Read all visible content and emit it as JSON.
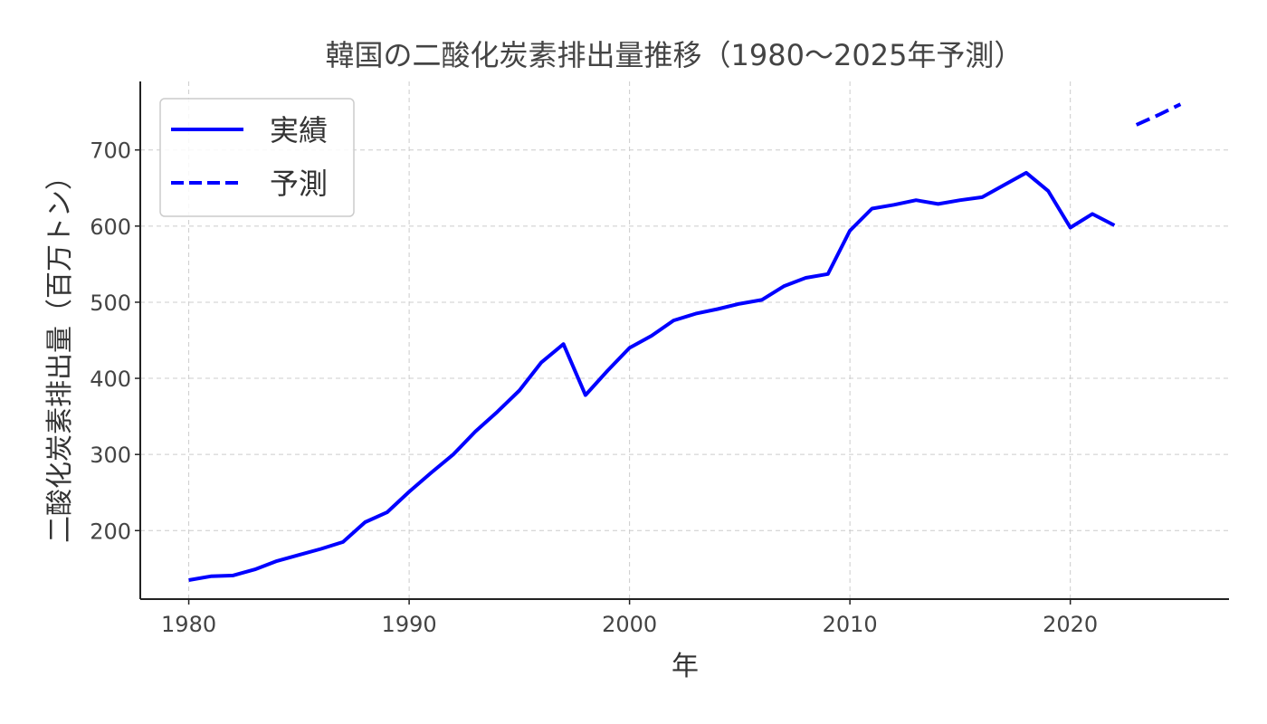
{
  "chart_data": {
    "type": "line",
    "title": "韓国の二酸化炭素排出量推移（1980〜2025年予測）",
    "xlabel": "年",
    "ylabel": "二酸化炭素排出量（百万トン）",
    "xlim": [
      1977.8,
      2027.2
    ],
    "ylim": [
      110,
      790
    ],
    "x_ticks": [
      1980,
      1990,
      2000,
      2010,
      2020
    ],
    "y_ticks": [
      200,
      300,
      400,
      500,
      600,
      700
    ],
    "grid": true,
    "legend_position": "top-left",
    "series": [
      {
        "name": "実績",
        "style": "solid",
        "color": "#0000ff",
        "x": [
          1980,
          1981,
          1982,
          1983,
          1984,
          1985,
          1986,
          1987,
          1988,
          1989,
          1990,
          1991,
          1992,
          1993,
          1994,
          1995,
          1996,
          1997,
          1998,
          1999,
          2000,
          2001,
          2002,
          2003,
          2004,
          2005,
          2006,
          2007,
          2008,
          2009,
          2010,
          2011,
          2012,
          2013,
          2014,
          2015,
          2016,
          2017,
          2018,
          2019,
          2020,
          2021,
          2022
        ],
        "values": [
          135,
          140,
          141,
          149,
          160,
          168,
          176,
          185,
          211,
          224,
          251,
          276,
          300,
          330,
          356,
          384,
          421,
          445,
          378,
          410,
          440,
          456,
          476,
          485,
          491,
          498,
          503,
          521,
          532,
          537,
          594,
          623,
          628,
          634,
          629,
          634,
          638,
          654,
          670,
          646,
          598,
          616,
          601
        ]
      },
      {
        "name": "予測",
        "style": "dashed",
        "color": "#0000ff",
        "x": [
          2023,
          2024,
          2025
        ],
        "values": [
          733,
          746,
          760
        ]
      }
    ]
  }
}
